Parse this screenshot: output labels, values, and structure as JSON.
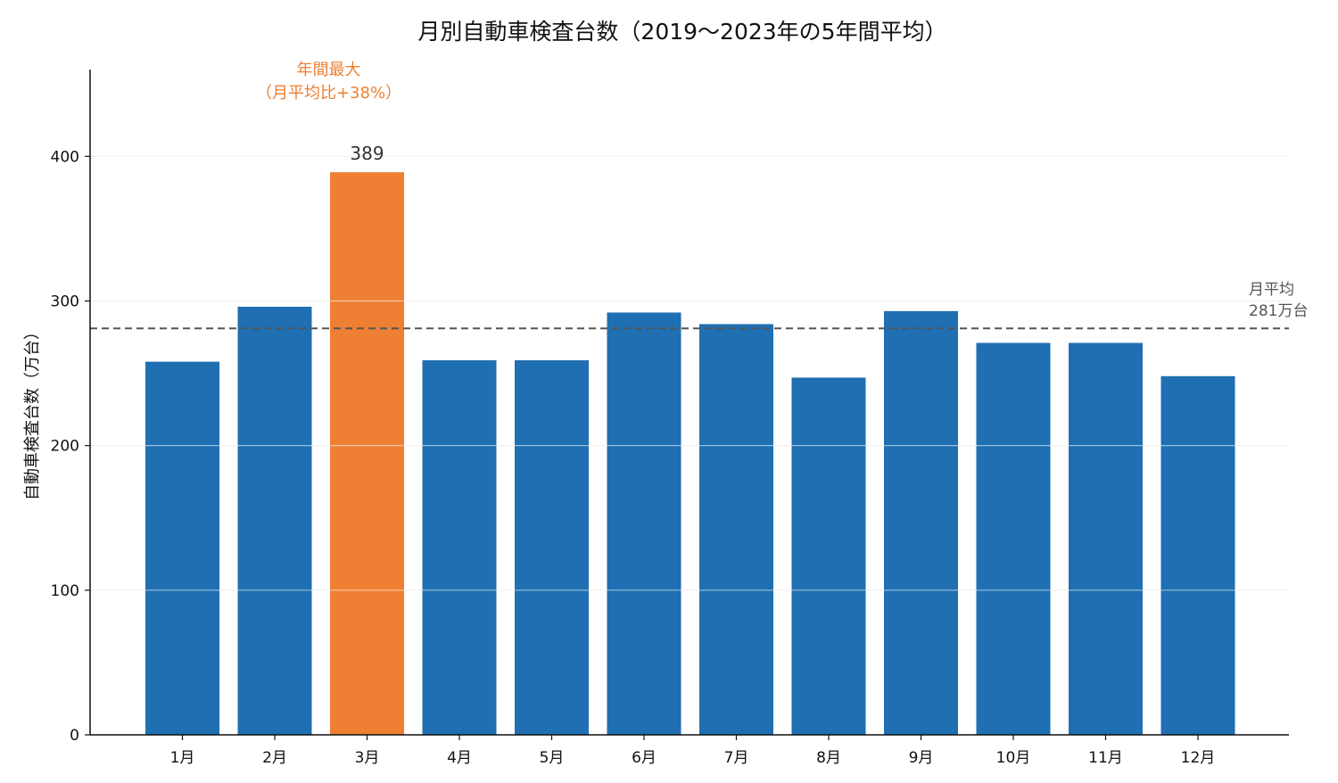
{
  "chart_data": {
    "type": "bar",
    "title": "月別自動車検査台数（2019〜2023年の5年間平均）",
    "xlabel": "",
    "ylabel": "自動車検査台数（万台）",
    "categories": [
      "1月",
      "2月",
      "3月",
      "4月",
      "5月",
      "6月",
      "7月",
      "8月",
      "9月",
      "10月",
      "11月",
      "12月"
    ],
    "values": [
      258,
      296,
      389,
      259,
      259,
      292,
      284,
      247,
      293,
      271,
      271,
      248
    ],
    "ylim": [
      0,
      460
    ],
    "yticks": [
      0,
      100,
      200,
      300,
      400
    ],
    "ytick_labels": [
      "0",
      "100",
      "200",
      "300",
      "400"
    ],
    "grid": "horizontal",
    "highlight": {
      "index": 2,
      "value_label": "389",
      "annotation_line1": "年間最大",
      "annotation_line2": "（月平均比+38%）"
    },
    "reference_line": {
      "value": 281,
      "label_line1": "月平均",
      "label_line2": "281万台"
    },
    "colors": {
      "bar": "#1f6fb2",
      "highlight": "#ee7f33",
      "reference": "#555555",
      "grid": "#e3e3e3",
      "axis": "#111111"
    }
  }
}
